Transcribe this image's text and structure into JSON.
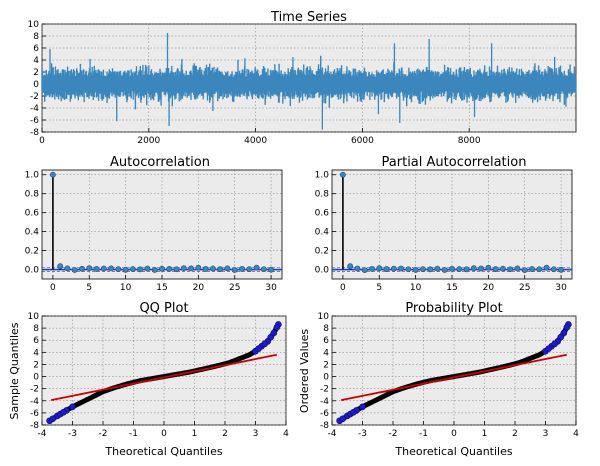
{
  "colors": {
    "ts_line": "#3b87bd",
    "stem": "#000000",
    "marker": "#3b87bd",
    "conf_line": "#1f3fbf",
    "qq_points": "#1c1cc8",
    "qq_line": "#d00000",
    "background": "#ebebeb"
  },
  "chart_data": [
    {
      "id": "ts",
      "type": "line",
      "title": "Time Series",
      "xlabel": "",
      "ylabel": "",
      "xlim": [
        0,
        10000
      ],
      "ylim": [
        -8,
        10
      ],
      "xticks": [
        0,
        2000,
        4000,
        6000,
        8000
      ],
      "yticks": [
        -8,
        -6,
        -4,
        -2,
        0,
        2,
        4,
        6,
        8,
        10
      ],
      "n_points": 10000,
      "typical_range": [
        -2,
        2
      ],
      "spikes": [
        {
          "x": 150,
          "y": 5.8
        },
        {
          "x": 1400,
          "y": -6.2
        },
        {
          "x": 2350,
          "y": 8.5
        },
        {
          "x": 2380,
          "y": -7.0
        },
        {
          "x": 3800,
          "y": 4.3
        },
        {
          "x": 5250,
          "y": -7.6
        },
        {
          "x": 6600,
          "y": 6.8
        },
        {
          "x": 6700,
          "y": -6.5
        },
        {
          "x": 7250,
          "y": 7.5
        },
        {
          "x": 8420,
          "y": 6.8
        },
        {
          "x": 6300,
          "y": -5.0
        },
        {
          "x": 900,
          "y": 4.2
        },
        {
          "x": 4700,
          "y": 4.5
        },
        {
          "x": 9600,
          "y": 4.5
        },
        {
          "x": 8100,
          "y": -5.5
        },
        {
          "x": 3200,
          "y": -4.5
        }
      ]
    },
    {
      "id": "acf",
      "type": "stem",
      "title": "Autocorrelation",
      "xlim": [
        -1.5,
        31.5
      ],
      "ylim": [
        -0.1,
        1.05
      ],
      "xticks": [
        0,
        5,
        10,
        15,
        20,
        25,
        30
      ],
      "yticks": [
        0.0,
        0.2,
        0.4,
        0.6,
        0.8,
        1.0
      ],
      "lags": [
        0,
        1,
        2,
        3,
        4,
        5,
        6,
        7,
        8,
        9,
        10,
        11,
        12,
        13,
        14,
        15,
        16,
        17,
        18,
        19,
        20,
        21,
        22,
        23,
        24,
        25,
        26,
        27,
        28,
        29,
        30
      ],
      "values": [
        1.0,
        0.035,
        0.012,
        -0.005,
        0.008,
        0.015,
        0.006,
        0.01,
        0.012,
        0.004,
        -0.003,
        0.005,
        0.002,
        0.01,
        -0.004,
        0.008,
        0.006,
        0.003,
        0.015,
        0.012,
        0.02,
        0.006,
        0.01,
        0.004,
        0.012,
        -0.005,
        0.006,
        0.004,
        0.02,
        0.003,
        -0.002
      ],
      "confidence": 0.02
    },
    {
      "id": "pacf",
      "type": "stem",
      "title": "Partial Autocorrelation",
      "xlim": [
        -1.5,
        31.5
      ],
      "ylim": [
        -0.1,
        1.05
      ],
      "xticks": [
        0,
        5,
        10,
        15,
        20,
        25,
        30
      ],
      "yticks": [
        0.0,
        0.2,
        0.4,
        0.6,
        0.8,
        1.0
      ],
      "lags": [
        0,
        1,
        2,
        3,
        4,
        5,
        6,
        7,
        8,
        9,
        10,
        11,
        12,
        13,
        14,
        15,
        16,
        17,
        18,
        19,
        20,
        21,
        22,
        23,
        24,
        25,
        26,
        27,
        28,
        29,
        30
      ],
      "values": [
        1.0,
        0.035,
        0.011,
        -0.006,
        0.007,
        0.014,
        0.005,
        0.009,
        0.011,
        0.003,
        -0.004,
        0.004,
        0.002,
        0.009,
        -0.005,
        0.007,
        0.005,
        0.002,
        0.014,
        0.011,
        0.019,
        0.005,
        0.009,
        0.003,
        0.012,
        -0.006,
        0.005,
        0.003,
        0.02,
        0.003,
        -0.003
      ],
      "confidence": 0.02
    },
    {
      "id": "qq",
      "type": "scatter",
      "title": "QQ Plot",
      "xlabel": "Theoretical Quantiles",
      "ylabel": "Sample Quantiles",
      "xlim": [
        -4,
        4
      ],
      "ylim": [
        -8,
        10
      ],
      "xticks": [
        -4,
        -3,
        -2,
        -1,
        0,
        1,
        2,
        3,
        4
      ],
      "yticks": [
        -8,
        -6,
        -4,
        -2,
        0,
        2,
        4,
        6,
        8,
        10
      ],
      "curve": [
        [
          -3.75,
          -7.3
        ],
        [
          -3.5,
          -6.5
        ],
        [
          -3.2,
          -5.6
        ],
        [
          -3.0,
          -5.0
        ],
        [
          -2.8,
          -4.5
        ],
        [
          -2.6,
          -4.0
        ],
        [
          -2.4,
          -3.5
        ],
        [
          -2.2,
          -3.0
        ],
        [
          -2.0,
          -2.5
        ],
        [
          -1.6,
          -1.8
        ],
        [
          -1.2,
          -1.2
        ],
        [
          -0.8,
          -0.7
        ],
        [
          -0.4,
          -0.35
        ],
        [
          0.0,
          0.0
        ],
        [
          0.4,
          0.35
        ],
        [
          0.8,
          0.7
        ],
        [
          1.2,
          1.15
        ],
        [
          1.6,
          1.6
        ],
        [
          2.0,
          2.1
        ],
        [
          2.2,
          2.4
        ],
        [
          2.4,
          2.8
        ],
        [
          2.6,
          3.2
        ],
        [
          2.8,
          3.6
        ],
        [
          3.0,
          4.2
        ],
        [
          3.2,
          5.0
        ],
        [
          3.4,
          5.8
        ],
        [
          3.6,
          7.2
        ],
        [
          3.75,
          8.6
        ]
      ],
      "fit_line": {
        "x": [
          -3.7,
          3.7
        ],
        "y": [
          -3.9,
          3.6
        ]
      }
    },
    {
      "id": "prob",
      "type": "scatter",
      "title": "Probability Plot",
      "xlabel": "Theoretical Quantiles",
      "ylabel": "Ordered Values",
      "xlim": [
        -4,
        4
      ],
      "ylim": [
        -8,
        10
      ],
      "xticks": [
        -4,
        -3,
        -2,
        -1,
        0,
        1,
        2,
        3,
        4
      ],
      "yticks": [
        -8,
        -6,
        -4,
        -2,
        0,
        2,
        4,
        6,
        8,
        10
      ],
      "curve": [
        [
          -3.75,
          -7.3
        ],
        [
          -3.5,
          -6.5
        ],
        [
          -3.2,
          -5.6
        ],
        [
          -3.0,
          -5.0
        ],
        [
          -2.8,
          -4.5
        ],
        [
          -2.6,
          -4.0
        ],
        [
          -2.4,
          -3.5
        ],
        [
          -2.2,
          -3.0
        ],
        [
          -2.0,
          -2.5
        ],
        [
          -1.6,
          -1.8
        ],
        [
          -1.2,
          -1.2
        ],
        [
          -0.8,
          -0.7
        ],
        [
          -0.4,
          -0.35
        ],
        [
          0.0,
          0.0
        ],
        [
          0.4,
          0.35
        ],
        [
          0.8,
          0.7
        ],
        [
          1.2,
          1.15
        ],
        [
          1.6,
          1.6
        ],
        [
          2.0,
          2.1
        ],
        [
          2.2,
          2.4
        ],
        [
          2.4,
          2.8
        ],
        [
          2.6,
          3.2
        ],
        [
          2.8,
          3.6
        ],
        [
          3.0,
          4.2
        ],
        [
          3.2,
          5.0
        ],
        [
          3.4,
          5.8
        ],
        [
          3.6,
          7.2
        ],
        [
          3.75,
          8.6
        ]
      ],
      "fit_line": {
        "x": [
          -3.7,
          3.7
        ],
        "y": [
          -3.9,
          3.6
        ]
      }
    }
  ]
}
